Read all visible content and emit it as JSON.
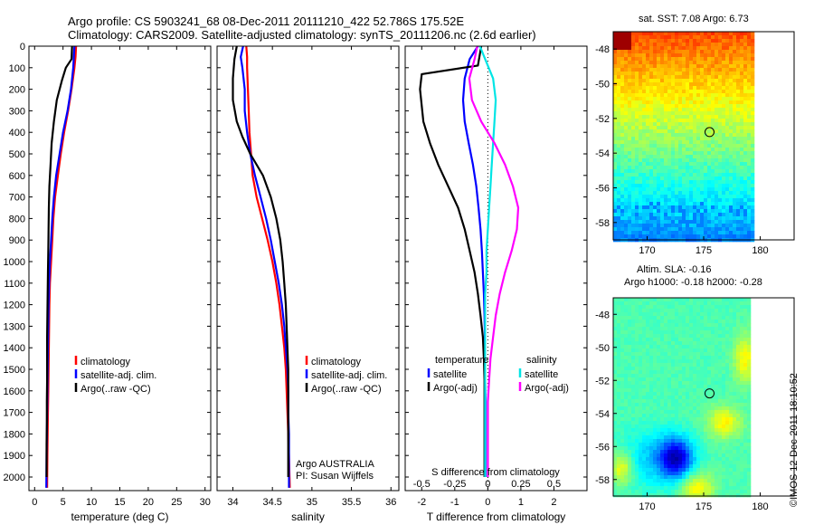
{
  "header": {
    "title_line1": "Argo profile: CS 5903241_68 08-Dec-2011 20111210_422 52.786S 175.52E",
    "title_line2": "Climatology: CARS2009. Satellite-adjusted climatology: synTS_20111206.nc (2.6d earlier)"
  },
  "colors": {
    "climatology": "#ff0000",
    "satellite": "#0000ff",
    "argo": "#000000",
    "satellite_salinity": "#00e5e5",
    "argo_salinity_diff": "#ff00ff"
  },
  "chart_data": [
    {
      "id": "temperature",
      "type": "line",
      "xlabel": "temperature (deg C)",
      "ylabel": "",
      "xlim": [
        -1,
        31
      ],
      "ylim": [
        2080,
        0
      ],
      "y_reversed": true,
      "xticks": [
        0,
        5,
        10,
        15,
        20,
        25,
        30
      ],
      "yticks": [
        0,
        100,
        200,
        300,
        400,
        500,
        600,
        700,
        800,
        900,
        1000,
        1100,
        1200,
        1300,
        1400,
        1500,
        1600,
        1700,
        1800,
        1900,
        2000
      ],
      "legend": [
        "climatology",
        "satellite-adj. clim.",
        "Argo(..raw -QC)"
      ],
      "series": [
        {
          "name": "climatology",
          "color": "#ff0000",
          "x": [
            7.3,
            7.2,
            7.0,
            6.5,
            5.9,
            5.2,
            4.6,
            4.1,
            3.6,
            3.3,
            3.1,
            2.9,
            2.7,
            2.6,
            2.55,
            2.5,
            2.45,
            2.4,
            2.35,
            2.3,
            2.25,
            2.2
          ],
          "y": [
            0,
            50,
            100,
            200,
            300,
            400,
            500,
            600,
            700,
            800,
            900,
            1000,
            1100,
            1200,
            1300,
            1400,
            1500,
            1600,
            1700,
            1800,
            1900,
            2050
          ]
        },
        {
          "name": "satellite-adj. clim.",
          "color": "#0000ff",
          "x": [
            7.0,
            6.9,
            6.8,
            6.4,
            5.8,
            5.0,
            4.4,
            3.8,
            3.4,
            3.1,
            2.9,
            2.7,
            2.55,
            2.45,
            2.4,
            2.35,
            2.3,
            2.25,
            2.2,
            2.15,
            2.1,
            2.05
          ],
          "y": [
            0,
            50,
            100,
            200,
            300,
            400,
            500,
            600,
            700,
            800,
            900,
            1000,
            1100,
            1200,
            1300,
            1400,
            1500,
            1600,
            1700,
            1800,
            1900,
            2050
          ]
        },
        {
          "name": "Argo(..raw -QC)",
          "color": "#000000",
          "x": [
            6.6,
            6.5,
            5.5,
            4.8,
            3.9,
            3.4,
            3.0,
            2.8,
            2.6,
            2.5,
            2.45,
            2.4,
            2.35,
            2.3,
            2.25,
            2.2,
            2.2,
            2.2,
            2.15,
            2.15,
            2.1,
            2.1,
            2.1
          ],
          "y": [
            0,
            60,
            100,
            160,
            250,
            350,
            450,
            550,
            650,
            750,
            850,
            950,
            1050,
            1150,
            1250,
            1350,
            1450,
            1550,
            1650,
            1750,
            1850,
            1950,
            2000
          ]
        }
      ]
    },
    {
      "id": "salinity",
      "type": "line",
      "xlabel": "salinity",
      "xlim": [
        33.8,
        36.1
      ],
      "ylim": [
        2080,
        0
      ],
      "y_reversed": true,
      "xticks": [
        34,
        34.5,
        35,
        35.5,
        36
      ],
      "xticklabels": [
        "34",
        "34.5",
        "35",
        "35.5",
        "36"
      ],
      "legend": [
        "climatology",
        "satellite-adj. clim.",
        "Argo(..raw -QC)"
      ],
      "annotations": [
        "Argo AUSTRALIA",
        "PI: Susan Wijffels"
      ],
      "series": [
        {
          "name": "climatology",
          "color": "#ff0000",
          "x": [
            34.17,
            34.18,
            34.18,
            34.19,
            34.2,
            34.21,
            34.23,
            34.25,
            34.3,
            34.37,
            34.44,
            34.5,
            34.55,
            34.59,
            34.62,
            34.65,
            34.67,
            34.68,
            34.69,
            34.7,
            34.71,
            34.72
          ],
          "y": [
            0,
            50,
            100,
            200,
            300,
            400,
            500,
            600,
            700,
            800,
            900,
            1000,
            1100,
            1200,
            1300,
            1400,
            1500,
            1600,
            1700,
            1800,
            1900,
            2050
          ]
        },
        {
          "name": "satellite-adj. clim.",
          "color": "#0000ff",
          "x": [
            34.13,
            34.1,
            34.12,
            34.15,
            34.15,
            34.18,
            34.22,
            34.28,
            34.35,
            34.42,
            34.48,
            34.53,
            34.58,
            34.62,
            34.65,
            34.67,
            34.69,
            34.7,
            34.7,
            34.71,
            34.71,
            34.71
          ],
          "y": [
            0,
            50,
            100,
            200,
            300,
            400,
            500,
            600,
            700,
            800,
            900,
            1000,
            1100,
            1200,
            1300,
            1400,
            1500,
            1600,
            1700,
            1800,
            1900,
            2050
          ]
        },
        {
          "name": "Argo(..raw -QC)",
          "color": "#000000",
          "x": [
            34.05,
            34.02,
            34.0,
            34.0,
            34.05,
            34.12,
            34.22,
            34.38,
            34.48,
            34.55,
            34.6,
            34.63,
            34.65,
            34.67,
            34.68,
            34.69,
            34.7,
            34.7,
            34.7,
            34.7
          ],
          "y": [
            0,
            60,
            150,
            250,
            350,
            420,
            500,
            600,
            700,
            800,
            900,
            1000,
            1100,
            1200,
            1300,
            1400,
            1500,
            1600,
            1800,
            2000
          ]
        }
      ]
    },
    {
      "id": "difference",
      "type": "line",
      "xlabel": "T difference from climatology",
      "xlabel_top": "S difference from climatology",
      "xlim": [
        -2.5,
        3.0
      ],
      "ylim": [
        2080,
        0
      ],
      "y_reversed": true,
      "xticks": [
        -2,
        -1,
        0,
        1,
        2
      ],
      "xticks_salinity": [
        -0.5,
        -0.25,
        0,
        0.25,
        0.5
      ],
      "xticklabels_salinity": [
        "-0.5",
        "-0.25",
        "0",
        "0.25",
        "0.5"
      ],
      "legend_temperature": {
        "title": "temperature",
        "items": [
          "satellite",
          "Argo(-adj)"
        ]
      },
      "legend_salinity": {
        "title": "salinity",
        "items": [
          "satellite",
          "Argo(-adj)"
        ]
      },
      "series": [
        {
          "name": "temperature satellite",
          "color": "#0000ff",
          "x": [
            -0.3,
            -0.55,
            -0.7,
            -0.75,
            -0.7,
            -0.58,
            -0.45,
            -0.35,
            -0.28,
            -0.22,
            -0.18,
            -0.15,
            -0.12,
            -0.1,
            -0.09,
            -0.08,
            -0.08,
            -0.07,
            -0.07,
            -0.07,
            -0.07
          ],
          "y": [
            0,
            60,
            150,
            250,
            350,
            450,
            550,
            650,
            750,
            850,
            950,
            1050,
            1150,
            1250,
            1350,
            1450,
            1550,
            1650,
            1750,
            1850,
            2000
          ]
        },
        {
          "name": "temperature Argo(-adj)",
          "color": "#000000",
          "x": [
            -0.2,
            -0.3,
            -2.0,
            -2.05,
            -1.95,
            -1.75,
            -1.5,
            -1.2,
            -0.9,
            -0.7,
            -0.55,
            -0.4,
            -0.3,
            -0.22,
            -0.15,
            -0.12,
            -0.1,
            -0.1,
            -0.1,
            -0.1,
            -0.1,
            -0.1
          ],
          "y": [
            0,
            90,
            130,
            200,
            350,
            450,
            550,
            650,
            750,
            850,
            950,
            1050,
            1150,
            1250,
            1350,
            1450,
            1550,
            1650,
            1750,
            1850,
            1950,
            2000
          ]
        },
        {
          "name": "salinity satellite",
          "color": "#00e5e5",
          "x": [
            -0.06,
            -0.02,
            0.04,
            0.06,
            0.05,
            0.04,
            0.03,
            0.02,
            0.01,
            0.0,
            -0.01,
            -0.01,
            -0.02,
            -0.02,
            -0.02,
            -0.02,
            -0.02,
            -0.02,
            -0.02,
            -0.02
          ],
          "y": [
            0,
            60,
            150,
            250,
            350,
            450,
            550,
            650,
            750,
            850,
            950,
            1050,
            1150,
            1250,
            1350,
            1450,
            1550,
            1650,
            1800,
            2000
          ]
        },
        {
          "name": "salinity Argo(-adj)",
          "color": "#ff00ff",
          "x": [
            -0.08,
            -0.1,
            -0.14,
            -0.12,
            -0.05,
            0.05,
            0.13,
            0.19,
            0.23,
            0.22,
            0.18,
            0.13,
            0.09,
            0.06,
            0.04,
            0.02,
            0.01,
            0.0,
            0.0,
            0.0
          ],
          "y": [
            0,
            60,
            150,
            250,
            350,
            450,
            550,
            650,
            750,
            850,
            950,
            1050,
            1150,
            1250,
            1350,
            1450,
            1550,
            1650,
            1800,
            2000
          ]
        }
      ]
    },
    {
      "id": "map_sst",
      "type": "heatmap",
      "title": "sat. SST: 7.08  Argo: 6.73",
      "xlim": [
        167,
        183
      ],
      "ylim": [
        -59,
        -47
      ],
      "xticks": [
        170,
        175,
        180
      ],
      "yticks": [
        -48,
        -50,
        -52,
        -54,
        -56,
        -58
      ],
      "marker": {
        "lon": 175.52,
        "lat": -52.786
      }
    },
    {
      "id": "map_sla",
      "type": "heatmap",
      "title": "Altim. SLA: -0.16",
      "subtitle": "Argo h1000: -0.18  h2000: -0.28",
      "xlim": [
        167,
        183
      ],
      "ylim": [
        -59,
        -47
      ],
      "xticks": [
        170,
        175,
        180
      ],
      "yticks": [
        -48,
        -50,
        -52,
        -54,
        -56,
        -58
      ],
      "marker": {
        "lon": 175.52,
        "lat": -52.786
      }
    }
  ],
  "footer": {
    "stamp": "©IMOS 12-Dec-2011 18:10:52"
  }
}
